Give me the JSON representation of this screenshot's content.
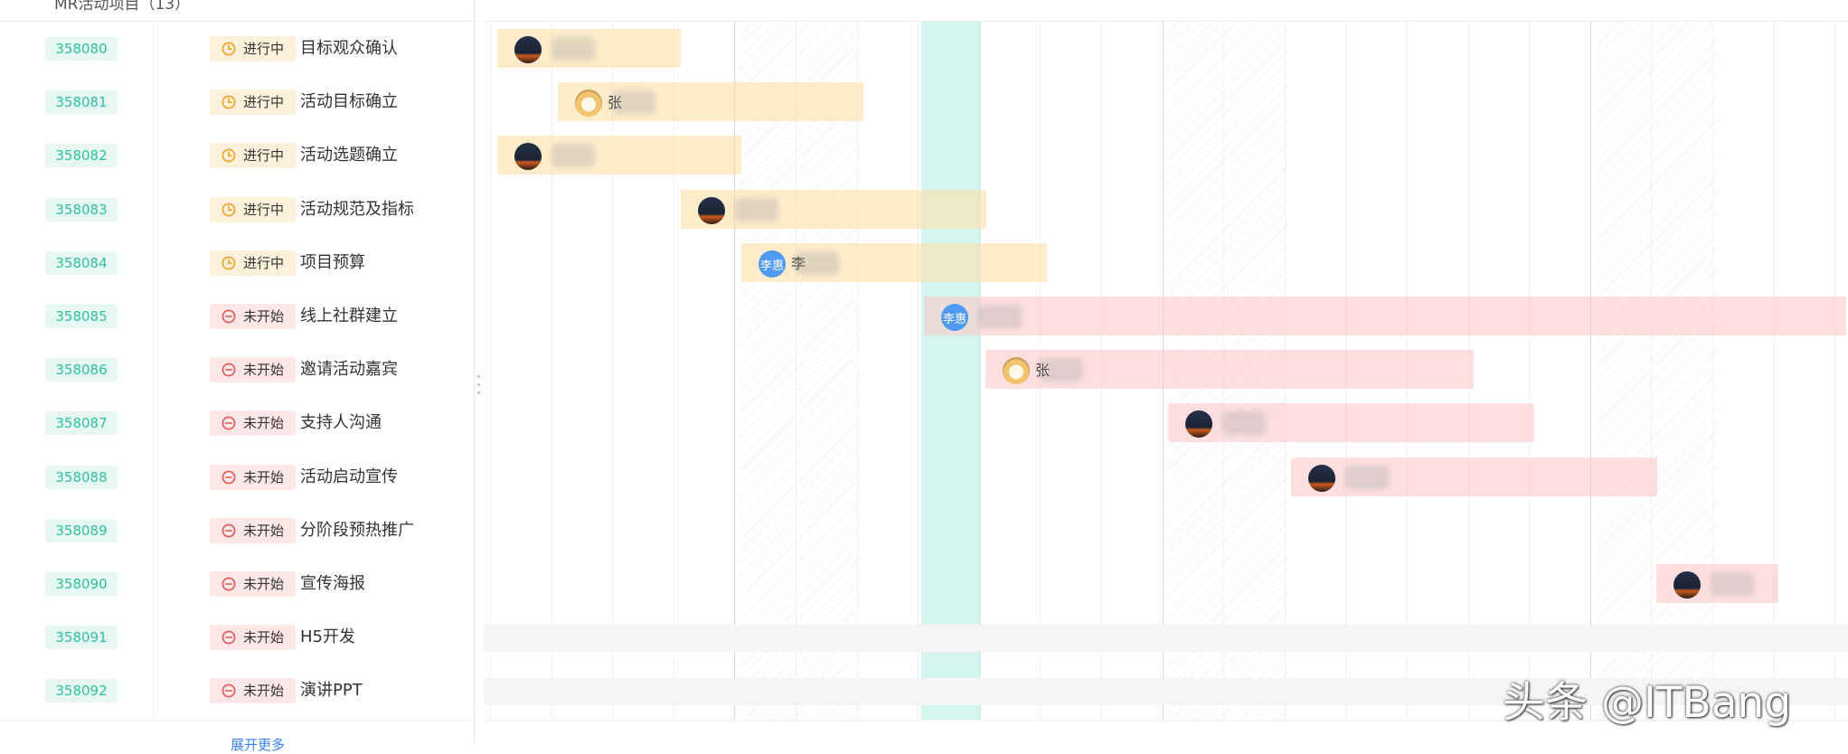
{
  "group": {
    "title": "MR活动项目（13）"
  },
  "footer": {
    "more_label": "展开更多"
  },
  "status_labels": {
    "in_progress": "进行中",
    "not_started": "未开始"
  },
  "tasks": [
    {
      "id": "358080",
      "status": "进行中",
      "name": "目标观众确认",
      "assignee": ""
    },
    {
      "id": "358081",
      "status": "进行中",
      "name": "活动目标确立",
      "assignee": "张"
    },
    {
      "id": "358082",
      "status": "进行中",
      "name": "活动选题确立",
      "assignee": ""
    },
    {
      "id": "358083",
      "status": "进行中",
      "name": "活动规范及指标",
      "assignee": ""
    },
    {
      "id": "358084",
      "status": "进行中",
      "name": "项目预算",
      "assignee": "李"
    },
    {
      "id": "358085",
      "status": "未开始",
      "name": "线上社群建立",
      "assignee": ""
    },
    {
      "id": "358086",
      "status": "未开始",
      "name": "邀请活动嘉宾",
      "assignee": "张"
    },
    {
      "id": "358087",
      "status": "未开始",
      "name": "支持人沟通",
      "assignee": ""
    },
    {
      "id": "358088",
      "status": "未开始",
      "name": "活动启动宣传",
      "assignee": ""
    },
    {
      "id": "358089",
      "status": "未开始",
      "name": "分阶段预热推广",
      "assignee": ""
    },
    {
      "id": "358090",
      "status": "未开始",
      "name": "宣传海报",
      "assignee": ""
    },
    {
      "id": "358091",
      "status": "未开始",
      "name": "H5开发",
      "assignee": ""
    },
    {
      "id": "358092",
      "status": "未开始",
      "name": "演讲PPT",
      "assignee": ""
    }
  ],
  "avatars": {
    "text_avatar": "李惠"
  },
  "colors": {
    "in_progress": "#f0a020",
    "not_started": "#e05555",
    "id_text": "#2fbfa1",
    "today_highlight": "#64dcc8"
  },
  "watermark": "头条 @ITBang"
}
